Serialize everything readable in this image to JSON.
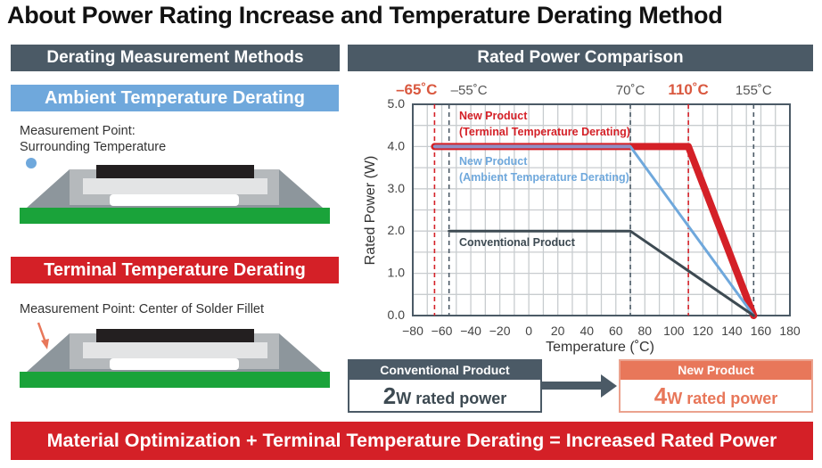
{
  "title": "About Power Rating Increase and Temperature Derating Method",
  "left_panel": {
    "header": "Derating Measurement Methods",
    "ambient": {
      "title": "Ambient Temperature Derating",
      "note_line1": "Measurement Point:",
      "note_line2": "Surrounding Temperature"
    },
    "terminal": {
      "title": "Terminal Temperature Derating",
      "note": "Measurement Point: Center of Solder Fillet"
    }
  },
  "right_panel": {
    "header": "Rated Power Comparison"
  },
  "comparison": {
    "conventional": {
      "label": "Conventional Product",
      "value": "2",
      "unit_text": "W rated power"
    },
    "new": {
      "label": "New Product",
      "value": "4",
      "unit_text": "W rated power"
    }
  },
  "banner": "Material Optimization + Terminal Temperature Derating = Increased Rated Power",
  "colors": {
    "red": "#d42027",
    "blue": "#6fa8dc",
    "dark": "#4b5a66",
    "salmon": "#e8775a",
    "green": "#1aa33a"
  },
  "chart_data": {
    "type": "line",
    "xlabel": "Temperature (˚C)",
    "ylabel": "Rated Power (W)",
    "xlim": [
      -80,
      180
    ],
    "ylim": [
      0,
      5
    ],
    "xticks": [
      "-80",
      "-60",
      "-40",
      "-20",
      "0",
      "20",
      "40",
      "60",
      "80",
      "100",
      "120",
      "140",
      "160",
      "180"
    ],
    "yticks": [
      "0.0",
      "1.0",
      "2.0",
      "3.0",
      "4.0",
      "5.0"
    ],
    "grid": true,
    "markers": [
      {
        "x": -65,
        "label": "–65˚C",
        "color": "#d42027"
      },
      {
        "x": -55,
        "label": "–55˚C",
        "color": "#4b5a66"
      },
      {
        "x": 70,
        "label": "70˚C",
        "color": "#4b5a66"
      },
      {
        "x": 110,
        "label": "110˚C",
        "color": "#d42027"
      },
      {
        "x": 155,
        "label": "155˚C",
        "color": "#4b5a66"
      }
    ],
    "series": [
      {
        "name": "New Product (Terminal Temperature Derating)",
        "label_line1": "New Product",
        "label_line2": "(Terminal Temperature Derating)",
        "color": "#d42027",
        "points": [
          [
            -65,
            4
          ],
          [
            110,
            4
          ],
          [
            155,
            0
          ]
        ]
      },
      {
        "name": "New Product (Ambient Temperature Derating)",
        "label_line1": "New Product",
        "label_line2": "(Ambient Temperature Derating)",
        "color": "#6fa8dc",
        "points": [
          [
            -65,
            4
          ],
          [
            70,
            4
          ],
          [
            155,
            0
          ]
        ]
      },
      {
        "name": "Conventional Product",
        "label_line1": "Conventional Product",
        "color": "#3d4a52",
        "points": [
          [
            -55,
            2
          ],
          [
            70,
            2
          ],
          [
            155,
            0
          ]
        ]
      }
    ]
  }
}
